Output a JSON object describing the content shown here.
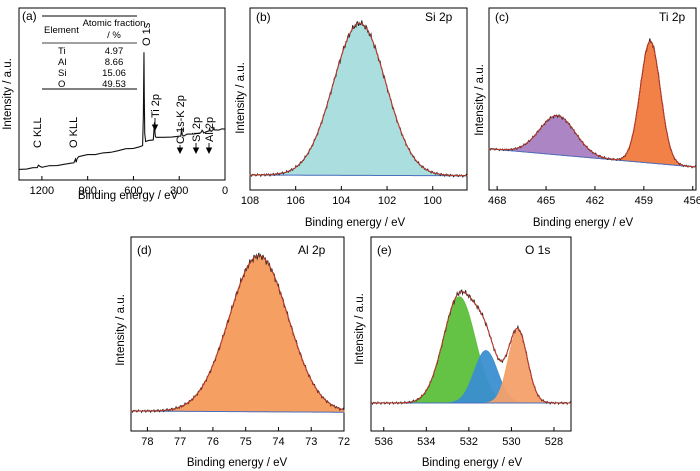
{
  "colors": {
    "envelope": "#c0392b",
    "raw": "#222222",
    "background": "#4a6fbf",
    "si": "#a6dcdc",
    "ti32": "#a87fc1",
    "ti12": "#f07a3c",
    "al": "#f49a5a",
    "o_green": "#5cbf3a",
    "o_blue": "#3a8fd0",
    "o_orange": "#f3a06a"
  },
  "chart_data": [
    {
      "id": "a",
      "type": "line",
      "panel_label": "(a)",
      "xlabel": "Binding energy / eV",
      "ylabel": "Intensity / a.u.",
      "xlim": [
        1350,
        0
      ],
      "xticks": [
        1200,
        900,
        600,
        300,
        0
      ],
      "series": [
        {
          "x": [
            1350,
            1300,
            1260,
            1230,
            1225,
            1222,
            1218,
            1212,
            1200,
            1150,
            1100,
            1050,
            1010,
            990,
            980,
            975,
            970,
            960,
            950,
            900,
            850,
            800,
            750,
            700,
            650,
            600,
            560,
            540,
            535,
            531,
            529,
            526,
            520,
            500,
            470,
            462,
            460,
            456,
            450,
            400,
            350,
            300,
            290,
            287,
            284,
            282,
            280,
            270,
            250,
            200,
            160,
            153,
            150,
            145,
            140,
            120,
            104,
            101,
            99,
            90,
            75,
            73,
            71,
            60,
            40,
            20,
            0
          ],
          "y": [
            0.5,
            1.0,
            1.6,
            2.4,
            3.2,
            4.2,
            3.6,
            2.8,
            2.6,
            3.3,
            3.9,
            4.8,
            5.5,
            6.3,
            8.8,
            6.8,
            9.0,
            11.0,
            11.6,
            12.5,
            13.2,
            14.0,
            14.8,
            16.2,
            17.5,
            18.3,
            19.0,
            20.5,
            45.0,
            98.0,
            62.0,
            30.0,
            24.0,
            24.5,
            25.0,
            40.0,
            33.0,
            28.0,
            27.0,
            27.3,
            27.6,
            27.9,
            28.5,
            31.0,
            35.5,
            31.5,
            29.0,
            28.6,
            29.5,
            30.3,
            30.8,
            32.0,
            33.3,
            32.0,
            31.2,
            31.8,
            32.6,
            35.5,
            32.8,
            32.5,
            33.8,
            36.0,
            33.5,
            33.2,
            33.6,
            34.0,
            34.3
          ]
        }
      ],
      "peak_labels": [
        "C KLL",
        "O KLL",
        "O 1s",
        "Ti 2p",
        "C 1s-K 2p",
        "Si 2p",
        "Al 2p"
      ],
      "table": {
        "headers": [
          "Element",
          "Atomic fraction / %"
        ],
        "rows": [
          [
            "Ti",
            "4.97"
          ],
          [
            "Al",
            "8.66"
          ],
          [
            "Si",
            "15.06"
          ],
          [
            "O",
            "49.53"
          ]
        ]
      }
    },
    {
      "id": "b",
      "type": "area",
      "panel_label": "(b)",
      "title": "Si 2p",
      "xlabel": "Binding energy / eV",
      "ylabel": "Intensity / a.u.",
      "xlim": [
        108,
        98.5
      ],
      "xticks": [
        108,
        106,
        104,
        102,
        100
      ],
      "background": [
        [
          108,
          0.0
        ],
        [
          98.5,
          -0.5
        ]
      ],
      "components": [
        {
          "center": 103.2,
          "sigma": 1.15,
          "height": 100,
          "color": "si"
        }
      ]
    },
    {
      "id": "c",
      "type": "area",
      "panel_label": "(c)",
      "title": "Ti 2p",
      "xlabel": "Binding energy / eV",
      "ylabel": "Intensity / a.u.",
      "xlim": [
        468.5,
        455.8
      ],
      "xticks": [
        468,
        465,
        462,
        459,
        456
      ],
      "background": [
        [
          468.5,
          1.0
        ],
        [
          455.8,
          -14.0
        ]
      ],
      "components": [
        {
          "center": 464.3,
          "sigma": 1.1,
          "height": 32,
          "color": "ti32"
        },
        {
          "center": 458.6,
          "sigma": 0.62,
          "height": 100,
          "color": "ti12"
        }
      ]
    },
    {
      "id": "d",
      "type": "area",
      "panel_label": "(d)",
      "title": "Al 2p",
      "xlabel": "Binding energy / eV",
      "ylabel": "Intensity / a.u.",
      "xlim": [
        78.5,
        72
      ],
      "xticks": [
        78,
        77,
        76,
        75,
        74,
        73,
        72
      ],
      "background": [
        [
          78.5,
          0.0
        ],
        [
          72,
          -0.8
        ]
      ],
      "components": [
        {
          "center": 74.6,
          "sigma": 0.9,
          "height": 100,
          "color": "al"
        }
      ]
    },
    {
      "id": "e",
      "type": "area",
      "panel_label": "(e)",
      "title": "O 1s",
      "xlabel": "Binding energy / eV",
      "ylabel": "Intensity / a.u.",
      "xlim": [
        536.6,
        527.2
      ],
      "xticks": [
        536,
        534,
        532,
        530,
        528
      ],
      "background": [
        [
          536.6,
          0.0
        ],
        [
          527.2,
          0.0
        ]
      ],
      "components": [
        {
          "center": 532.45,
          "sigma": 0.75,
          "height": 77,
          "color": "o_green"
        },
        {
          "center": 531.2,
          "sigma": 0.55,
          "height": 38,
          "color": "o_blue"
        },
        {
          "center": 529.7,
          "sigma": 0.45,
          "height": 53,
          "color": "o_orange"
        }
      ]
    }
  ]
}
